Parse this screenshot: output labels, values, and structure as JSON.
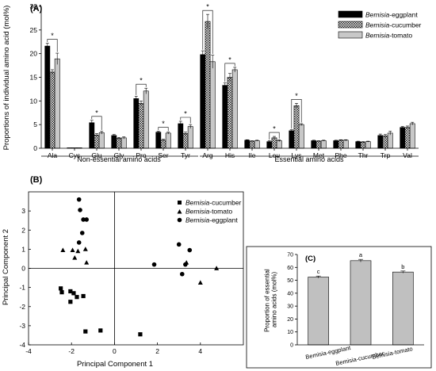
{
  "chart_data": [
    {
      "type": "bar",
      "panel_label": "(A)",
      "ylabel": "Proportions of individual amino acid (mol%)",
      "ylim": [
        0,
        30
      ],
      "yticks": [
        0,
        5,
        10,
        15,
        20,
        25,
        30
      ],
      "categories": [
        "Ala",
        "Cys",
        "Glu",
        "Gly",
        "Pro",
        "Ser",
        "Tyr",
        "Arg",
        "His",
        "Ile",
        "Leu",
        "Lys",
        "Met",
        "Phe",
        "Thr",
        "Trp",
        "Val"
      ],
      "groups": [
        {
          "label": "Non-essential amino acids",
          "start": 0,
          "end": 6
        },
        {
          "label": "Essential amino acids",
          "start": 7,
          "end": 16
        }
      ],
      "series": [
        {
          "name_prefix": "Bemisia",
          "name_suffix": "-eggplant",
          "fill": "#000000",
          "pattern": "solid",
          "values": [
            21.6,
            0.1,
            5.4,
            2.7,
            10.5,
            3.4,
            5.2,
            19.8,
            13.3,
            1.7,
            1.4,
            3.7,
            1.6,
            1.6,
            1.4,
            2.7,
            4.4
          ],
          "errors": [
            0.6,
            0,
            0.5,
            0.2,
            0.5,
            0.2,
            0.5,
            0.8,
            0.5,
            0.1,
            0.2,
            0.2,
            0.1,
            0.1,
            0.1,
            0.3,
            0.2
          ]
        },
        {
          "name_prefix": "Bemisia",
          "name_suffix": "-cucumber",
          "fill": "#ffffff",
          "pattern": "crosshatch",
          "values": [
            16.1,
            0.1,
            2.8,
            2.1,
            9.5,
            1.7,
            3.1,
            26.8,
            15.0,
            1.5,
            2.2,
            9.0,
            1.5,
            1.7,
            1.3,
            2.6,
            4.4
          ],
          "errors": [
            0.5,
            0,
            0.3,
            0.2,
            0.5,
            0.2,
            0.3,
            1.5,
            0.8,
            0.1,
            0.3,
            0.5,
            0.1,
            0.1,
            0.1,
            0.3,
            0.3
          ]
        },
        {
          "name_prefix": "Bemisia",
          "name_suffix": "-tomato",
          "fill": "#c8c8c8",
          "pattern": "solid",
          "values": [
            18.9,
            0.1,
            3.3,
            2.2,
            12.1,
            3.2,
            4.6,
            18.3,
            16.6,
            1.6,
            1.6,
            5.0,
            1.6,
            1.7,
            1.4,
            3.2,
            5.2
          ],
          "errors": [
            1.2,
            0,
            0.3,
            0.2,
            0.6,
            0.2,
            0.4,
            1.4,
            0.5,
            0.1,
            0.2,
            0.2,
            0.1,
            0.1,
            0.1,
            0.4,
            0.3
          ]
        }
      ],
      "significance": [
        {
          "category": "Ala",
          "from_series": 0,
          "to_series": 2,
          "mark": "*"
        },
        {
          "category": "Glu",
          "from_series": 0,
          "to_series": 2,
          "mark": "*"
        },
        {
          "category": "Pro",
          "from_series": 0,
          "to_series": 2,
          "mark": "*"
        },
        {
          "category": "Ser",
          "from_series": 0,
          "to_series": 2,
          "mark": "*"
        },
        {
          "category": "Tyr",
          "from_series": 0,
          "to_series": 2,
          "mark": "*"
        },
        {
          "category": "Arg",
          "from_series": 0,
          "to_series": 2,
          "mark": "*"
        },
        {
          "category": "His",
          "from_series": 0,
          "to_series": 2,
          "mark": "*"
        },
        {
          "category": "Leu",
          "from_series": 0,
          "to_series": 2,
          "mark": "*"
        },
        {
          "category": "Lys",
          "from_series": 0,
          "to_series": 2,
          "mark": "*"
        }
      ],
      "legend_position": "top-right"
    },
    {
      "type": "scatter",
      "panel_label": "(B)",
      "xlabel": "Principal Component 1",
      "ylabel": "Principal Component 2",
      "xlim": [
        -4,
        6
      ],
      "ylim": [
        -4,
        4
      ],
      "xticks": [
        -4,
        -2,
        0,
        2,
        4
      ],
      "yticks": [
        -4,
        -3,
        -2,
        -1,
        0,
        1,
        2,
        3
      ],
      "reference_lines": {
        "x": 0,
        "y": 0
      },
      "series": [
        {
          "name_prefix": "Bemisia",
          "name_suffix": "-cucumber",
          "marker": "square",
          "points": [
            [
              -2.5,
              -1.05
            ],
            [
              -2.45,
              -1.25
            ],
            [
              -2.05,
              -1.2
            ],
            [
              -1.9,
              -1.3
            ],
            [
              -2.05,
              -1.75
            ],
            [
              -1.75,
              -1.5
            ],
            [
              -1.45,
              -1.45
            ],
            [
              -1.35,
              -3.3
            ],
            [
              -0.65,
              -3.25
            ],
            [
              1.2,
              -3.45
            ]
          ]
        },
        {
          "name_prefix": "Bemisia",
          "name_suffix": "-tomato",
          "marker": "triangle",
          "points": [
            [
              -2.4,
              0.95
            ],
            [
              -1.95,
              0.95
            ],
            [
              -1.7,
              0.9
            ],
            [
              -1.35,
              1.0
            ],
            [
              -1.3,
              0.3
            ],
            [
              -1.85,
              0.55
            ],
            [
              3.35,
              0.3
            ],
            [
              4.0,
              -0.75
            ],
            [
              4.75,
              0.0
            ]
          ]
        },
        {
          "name_prefix": "Bemisia",
          "name_suffix": "-eggplant",
          "marker": "circle",
          "points": [
            [
              -1.65,
              3.6
            ],
            [
              -1.6,
              3.05
            ],
            [
              -1.45,
              2.55
            ],
            [
              -1.3,
              2.55
            ],
            [
              -1.5,
              1.85
            ],
            [
              -1.65,
              1.35
            ],
            [
              1.85,
              0.2
            ],
            [
              3.0,
              1.25
            ],
            [
              3.3,
              0.2
            ],
            [
              3.5,
              0.95
            ],
            [
              3.15,
              -0.3
            ]
          ]
        }
      ],
      "legend_position": "top-right"
    },
    {
      "type": "bar",
      "panel_label": "(C)",
      "ylabel_lines": [
        "Proportion of essential",
        "amino acids (mol%)"
      ],
      "ylim": [
        0,
        70
      ],
      "yticks": [
        0,
        10,
        20,
        30,
        40,
        50,
        60,
        70
      ],
      "categories": [
        "Bemisia-eggplant",
        "Bemisia-cucumber",
        "Bemisia-tomato"
      ],
      "values": [
        52.5,
        65.2,
        56.4
      ],
      "errors": [
        0.8,
        1.0,
        0.8
      ],
      "letters": [
        "c",
        "a",
        "b"
      ],
      "fill": "#c0c0c0"
    }
  ]
}
